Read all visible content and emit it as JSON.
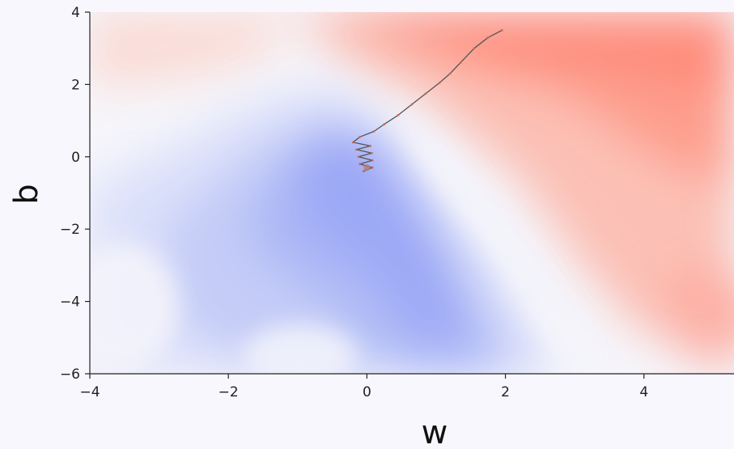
{
  "chart_data": {
    "type": "contour",
    "title": "",
    "xlabel": "w",
    "ylabel": "b",
    "xlim": [
      -4,
      5.3
    ],
    "ylim": [
      -6,
      4
    ],
    "x_ticks": [
      -4,
      -2,
      0,
      2,
      4
    ],
    "y_ticks": [
      -6,
      -4,
      -2,
      0,
      2,
      4
    ],
    "x_tick_labels": [
      "−4",
      "−2",
      "0",
      "2",
      "4"
    ],
    "y_tick_labels": [
      "−6",
      "−4",
      "−2",
      "0",
      "2",
      "4"
    ],
    "colormap": "coolwarm",
    "grid": false,
    "colors": {
      "low": "#9aa6f6",
      "mid": "#f6f6fb",
      "high": "#ff8a78"
    },
    "minimum": {
      "w": 0.0,
      "b": -0.3
    },
    "trajectory": {
      "color": "#555555",
      "points": [
        {
          "w": 1.95,
          "b": 3.5
        },
        {
          "w": 1.75,
          "b": 3.3
        },
        {
          "w": 1.55,
          "b": 3.0
        },
        {
          "w": 1.35,
          "b": 2.6
        },
        {
          "w": 1.2,
          "b": 2.3
        },
        {
          "w": 1.05,
          "b": 2.05
        },
        {
          "w": 0.85,
          "b": 1.75
        },
        {
          "w": 0.65,
          "b": 1.45
        },
        {
          "w": 0.45,
          "b": 1.15
        },
        {
          "w": 0.25,
          "b": 0.9
        },
        {
          "w": 0.1,
          "b": 0.7
        },
        {
          "w": -0.1,
          "b": 0.55
        }
      ],
      "zigzag": [
        {
          "w": -0.2,
          "b": 0.4
        },
        {
          "w": 0.05,
          "b": 0.3
        },
        {
          "w": -0.15,
          "b": 0.2
        },
        {
          "w": 0.07,
          "b": 0.1
        },
        {
          "w": -0.12,
          "b": 0.0
        },
        {
          "w": 0.08,
          "b": -0.1
        },
        {
          "w": -0.1,
          "b": -0.2
        },
        {
          "w": 0.08,
          "b": -0.3
        },
        {
          "w": -0.05,
          "b": -0.4
        }
      ]
    }
  }
}
